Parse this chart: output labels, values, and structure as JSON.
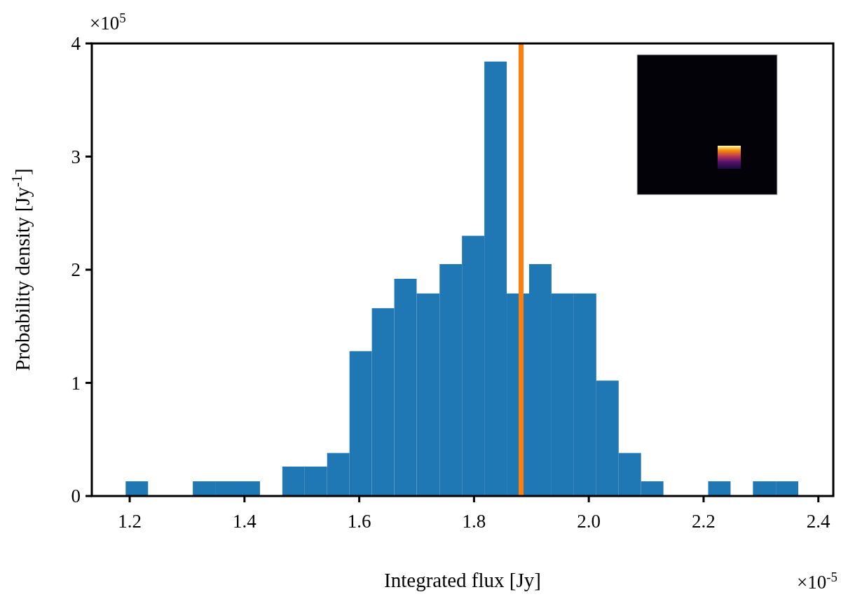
{
  "chart_data": {
    "type": "histogram",
    "xlabel": "Integrated flux [Jy]",
    "ylabel": "Probability density [Jy$^{-1}$]",
    "bins": [
      1.193,
      1.232,
      1.31,
      1.349,
      1.388,
      1.427,
      1.466,
      1.505,
      1.544,
      1.583,
      1.622,
      1.661,
      1.7,
      1.74,
      1.779,
      1.818,
      1.857,
      1.896,
      1.935,
      1.974,
      2.013,
      2.052,
      2.091,
      2.13,
      2.208,
      2.247,
      2.286,
      2.326,
      2.365
    ],
    "values": [
      0.13,
      0,
      0.13,
      0.13,
      0.13,
      0,
      0.26,
      0.26,
      0.38,
      1.28,
      1.66,
      1.92,
      1.79,
      2.05,
      2.3,
      3.84,
      1.79,
      2.05,
      1.79,
      1.79,
      1.02,
      0.38,
      0.13,
      0,
      0.13,
      0,
      0.13,
      0.13
    ],
    "color": "#1f77b4",
    "xlim": [
      1.134,
      2.426
    ],
    "xticks": [
      {
        "value": 1.2,
        "label": "1.2"
      },
      {
        "value": 1.4,
        "label": "1.4"
      },
      {
        "value": 1.6,
        "label": "1.6"
      },
      {
        "value": 1.8,
        "label": "1.8"
      },
      {
        "value": 2.0,
        "label": "2.0"
      },
      {
        "value": 2.2,
        "label": "2.2"
      },
      {
        "value": 2.4,
        "label": "2.4"
      }
    ],
    "ylim": [
      0,
      4
    ],
    "yticks": [
      0,
      1,
      2,
      3,
      4
    ],
    "ref_lines": [
      {
        "axis": "x",
        "value": 1.882,
        "color": "#ff7f0e"
      }
    ],
    "annotations": [
      "×10$^{5}$",
      "×10$^{-5}$"
    ],
    "grid": false
  }
}
